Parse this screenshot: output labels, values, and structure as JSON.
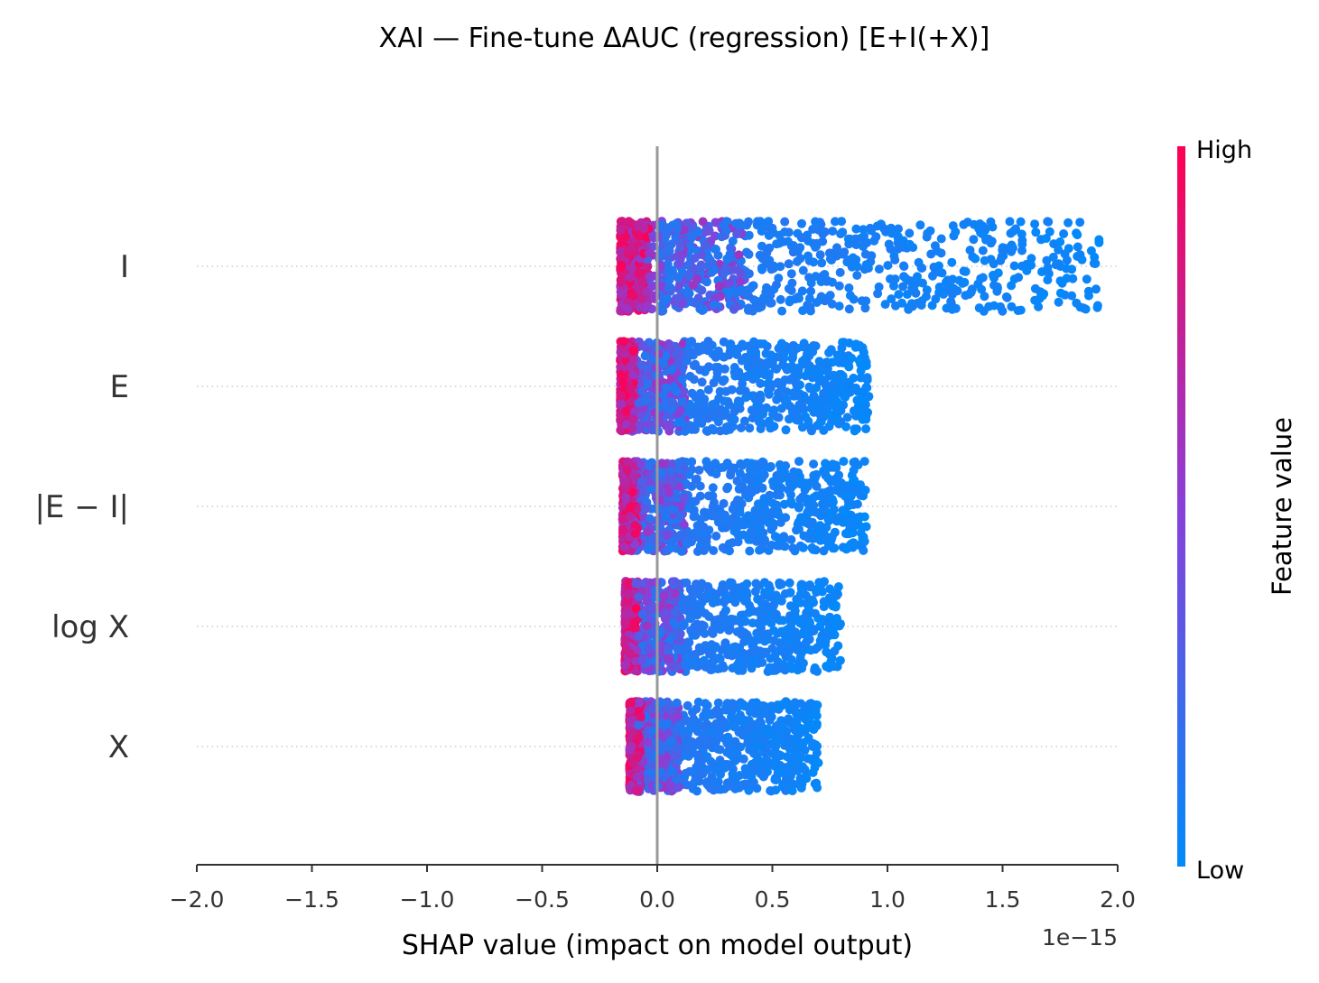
{
  "chart_data": {
    "type": "scatter",
    "subtype": "shap-beeswarm",
    "title": "XAI — Fine-tune ΔAUC (regression) [E+I(+X)]",
    "xlabel": "SHAP value (impact on model output)",
    "x_offset_label": "1e−15",
    "xlim": [
      -2.0,
      2.0
    ],
    "xticks": [
      -2.0,
      -1.5,
      -1.0,
      -0.5,
      0.0,
      0.5,
      1.0,
      1.5,
      2.0
    ],
    "xtick_labels": [
      "−2.0",
      "−1.5",
      "−1.0",
      "−0.5",
      "0.0",
      "0.5",
      "1.0",
      "1.5",
      "2.0"
    ],
    "colorbar": {
      "title": "Feature value",
      "high_label": "High",
      "low_label": "Low",
      "high_color": "#ff0052",
      "mid_color": "#8a3fd8",
      "low_color": "#008bfb"
    },
    "features": [
      {
        "name": "I",
        "shap_min": -0.16,
        "shap_max": 1.92,
        "points": 1200,
        "high_value_side": "left"
      },
      {
        "name": "E",
        "shap_min": -0.16,
        "shap_max": 0.92,
        "points": 1200,
        "high_value_side": "left"
      },
      {
        "name": "|E − I|",
        "shap_min": -0.15,
        "shap_max": 0.91,
        "points": 1200,
        "high_value_side": "left"
      },
      {
        "name": "log X",
        "shap_min": -0.14,
        "shap_max": 0.8,
        "points": 1200,
        "high_value_side": "left"
      },
      {
        "name": "X",
        "shap_min": -0.12,
        "shap_max": 0.7,
        "points": 1200,
        "high_value_side": "left"
      }
    ]
  }
}
